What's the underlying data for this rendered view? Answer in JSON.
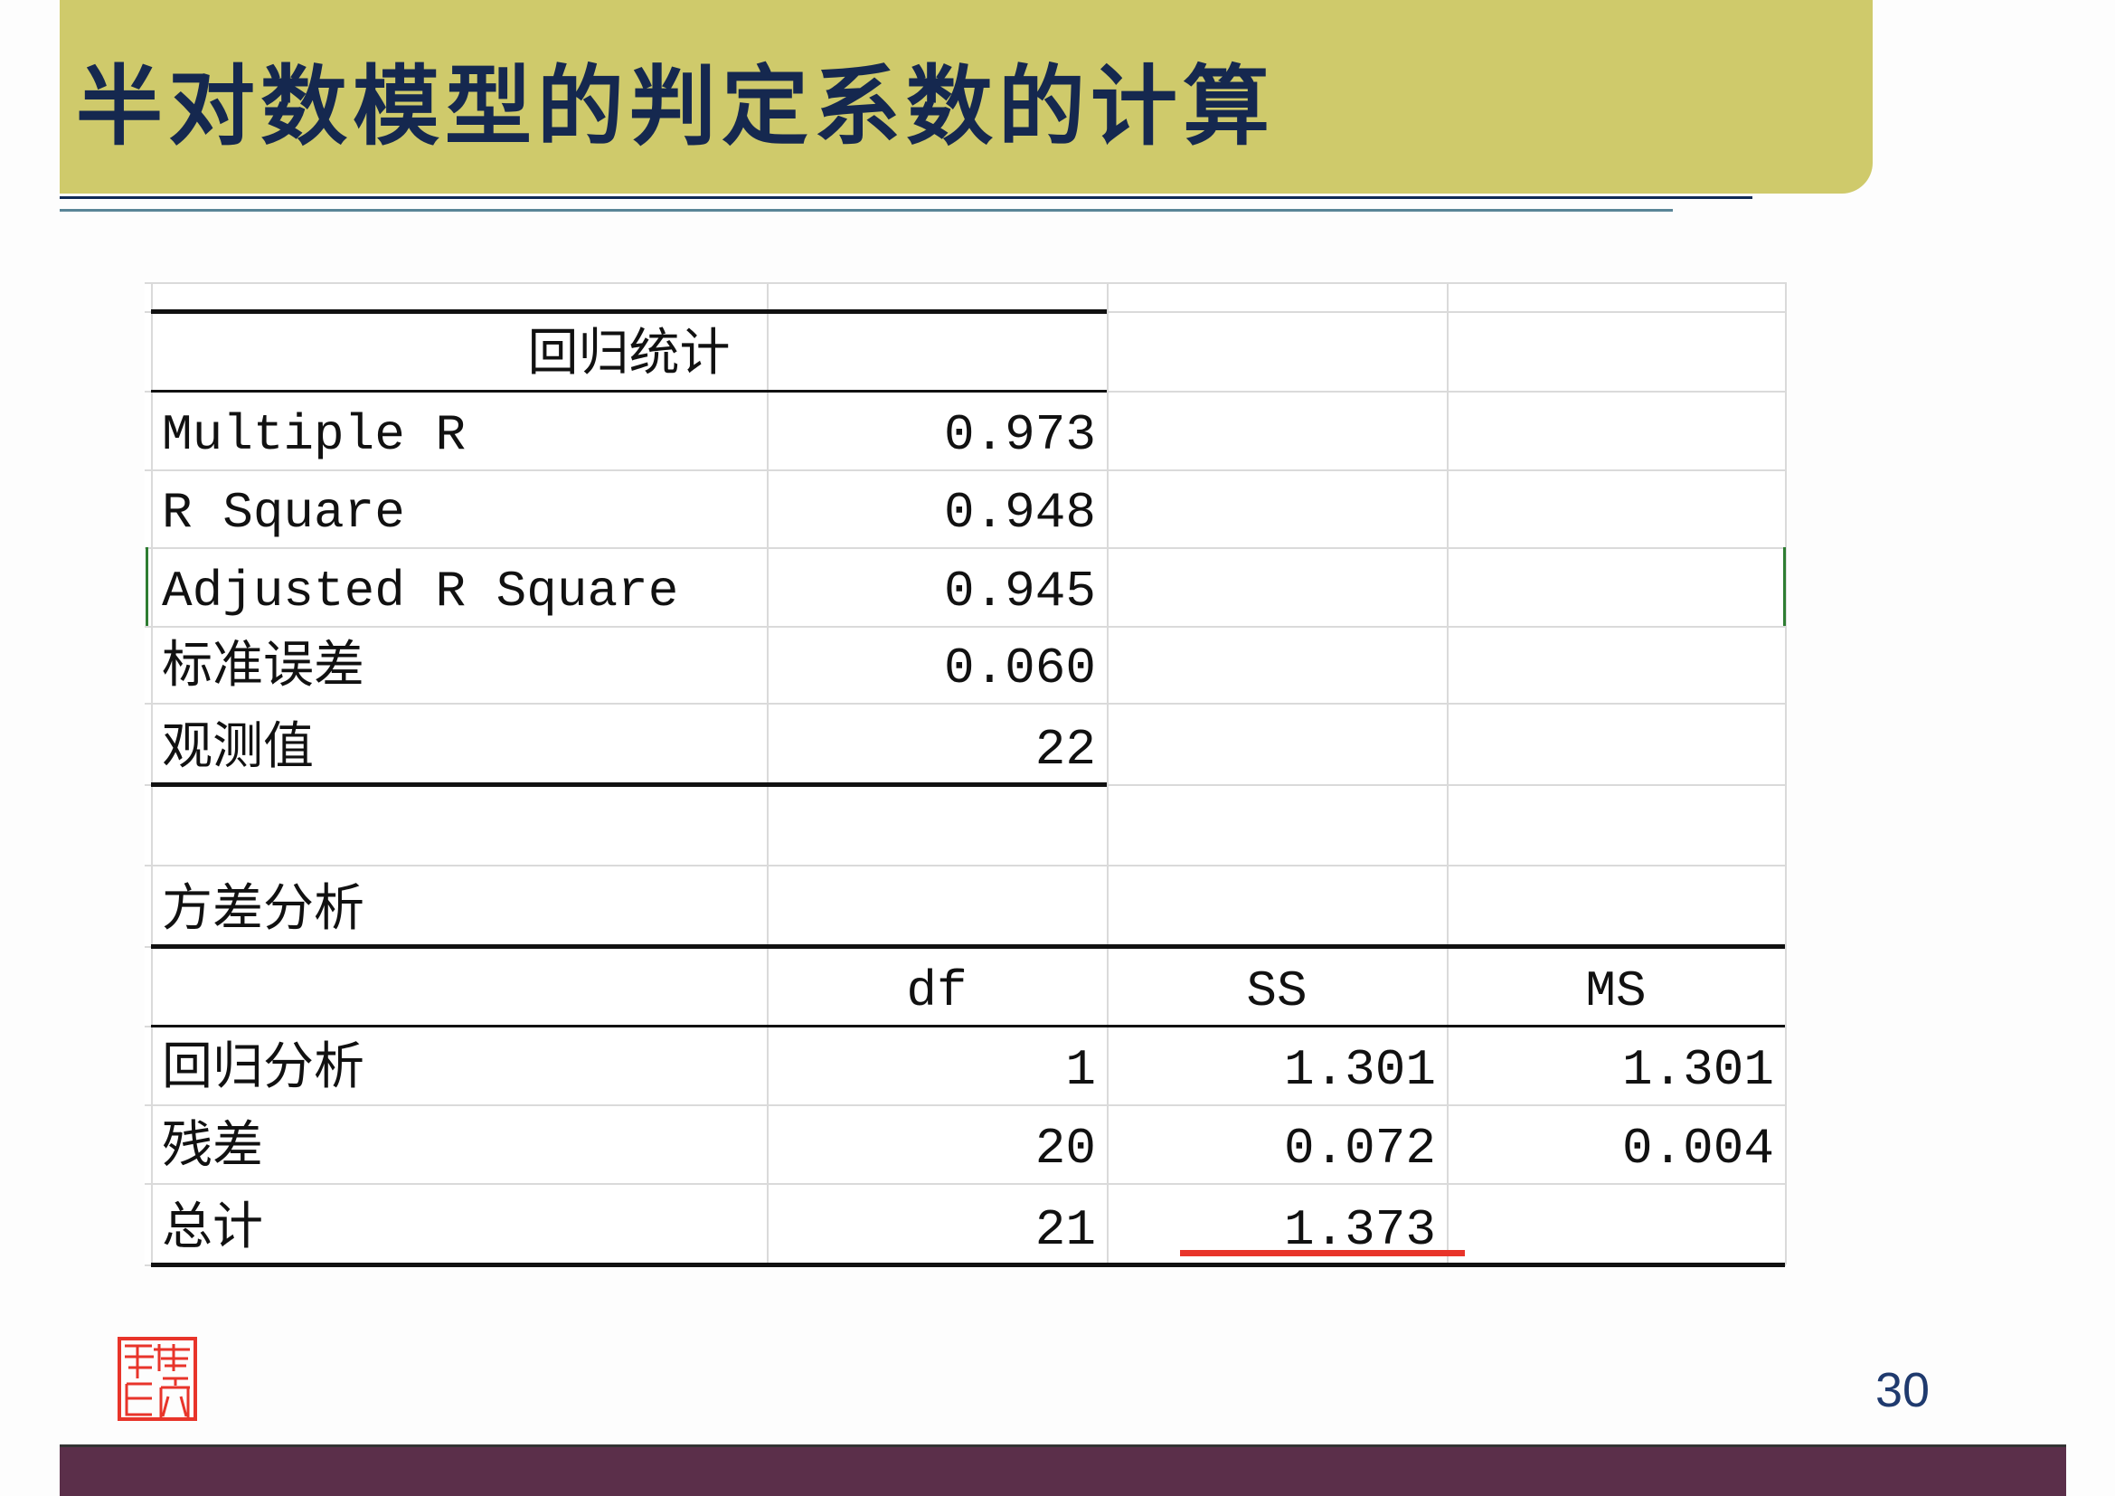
{
  "slide": {
    "title": "半对数模型的判定系数的计算",
    "page_number": "30",
    "seal_text": "南京审计",
    "colors": {
      "banner": "#cfca6b",
      "title": "#15284f",
      "footer": "#5b2f4a",
      "highlight_underline": "#e8342a"
    }
  },
  "regression_stats": {
    "header": "回归统计",
    "rows": [
      {
        "label": "Multiple R",
        "value": "0.973"
      },
      {
        "label": "R Square",
        "value": "0.948"
      },
      {
        "label": "Adjusted R Square",
        "value": "0.945"
      },
      {
        "label": "标准误差",
        "value": "0.060"
      },
      {
        "label": "观测值",
        "value": "22"
      }
    ]
  },
  "anova": {
    "header": "方差分析",
    "columns": [
      "",
      "df",
      "SS",
      "MS"
    ],
    "rows": [
      {
        "label": "回归分析",
        "df": "1",
        "ss": "1.301",
        "ms": "1.301"
      },
      {
        "label": "残差",
        "df": "20",
        "ss": "0.072",
        "ms": "0.004"
      },
      {
        "label": "总计",
        "df": "21",
        "ss": "1.373",
        "ms": ""
      }
    ]
  }
}
